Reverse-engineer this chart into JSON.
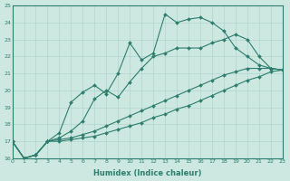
{
  "xlabel": "Humidex (Indice chaleur)",
  "ylabel": "",
  "xlim": [
    0,
    23
  ],
  "ylim": [
    16,
    25
  ],
  "yticks": [
    16,
    17,
    18,
    19,
    20,
    21,
    22,
    23,
    24,
    25
  ],
  "xticks": [
    0,
    1,
    2,
    3,
    4,
    5,
    6,
    7,
    8,
    9,
    10,
    11,
    12,
    13,
    14,
    15,
    16,
    17,
    18,
    19,
    20,
    21,
    22,
    23
  ],
  "background_color": "#cce8e0",
  "grid_color": "#b0d4cc",
  "line_color": "#2e7d6e",
  "lines": [
    {
      "x": [
        0,
        1,
        2,
        3,
        4,
        5,
        6,
        7,
        8,
        9,
        10,
        11,
        12,
        13,
        14,
        15,
        16,
        17,
        18,
        19,
        20,
        21,
        22,
        23
      ],
      "y": [
        17.0,
        16.0,
        16.2,
        17.0,
        17.5,
        19.3,
        19.9,
        20.3,
        19.8,
        21.0,
        22.8,
        21.8,
        22.2,
        24.5,
        24.0,
        24.2,
        24.3,
        24.0,
        23.5,
        22.5,
        22.0,
        21.5,
        21.3,
        21.2
      ],
      "marker": "D",
      "markersize": 2.0,
      "linewidth": 0.8
    },
    {
      "x": [
        0,
        1,
        2,
        3,
        4,
        5,
        6,
        7,
        8,
        9,
        10,
        11,
        12,
        13,
        14,
        15,
        16,
        17,
        18,
        19,
        20,
        21,
        22,
        23
      ],
      "y": [
        17.0,
        16.0,
        16.2,
        17.0,
        17.2,
        17.6,
        18.2,
        19.5,
        20.0,
        19.6,
        20.5,
        21.3,
        22.0,
        22.2,
        22.5,
        22.5,
        22.5,
        22.8,
        23.0,
        23.3,
        23.0,
        22.0,
        21.3,
        21.2
      ],
      "marker": "D",
      "markersize": 2.0,
      "linewidth": 0.8
    },
    {
      "x": [
        0,
        1,
        2,
        3,
        4,
        5,
        6,
        7,
        8,
        9,
        10,
        11,
        12,
        13,
        14,
        15,
        16,
        17,
        18,
        19,
        20,
        21,
        22,
        23
      ],
      "y": [
        17.0,
        16.0,
        16.2,
        17.0,
        17.1,
        17.2,
        17.4,
        17.6,
        17.9,
        18.2,
        18.5,
        18.8,
        19.1,
        19.4,
        19.7,
        20.0,
        20.3,
        20.6,
        20.9,
        21.1,
        21.3,
        21.3,
        21.3,
        21.2
      ],
      "marker": "D",
      "markersize": 2.0,
      "linewidth": 0.8
    },
    {
      "x": [
        0,
        1,
        2,
        3,
        4,
        5,
        6,
        7,
        8,
        9,
        10,
        11,
        12,
        13,
        14,
        15,
        16,
        17,
        18,
        19,
        20,
        21,
        22,
        23
      ],
      "y": [
        17.0,
        16.0,
        16.2,
        17.0,
        17.0,
        17.1,
        17.2,
        17.3,
        17.5,
        17.7,
        17.9,
        18.1,
        18.4,
        18.6,
        18.9,
        19.1,
        19.4,
        19.7,
        20.0,
        20.3,
        20.6,
        20.8,
        21.1,
        21.2
      ],
      "marker": "D",
      "markersize": 2.0,
      "linewidth": 0.8
    }
  ]
}
